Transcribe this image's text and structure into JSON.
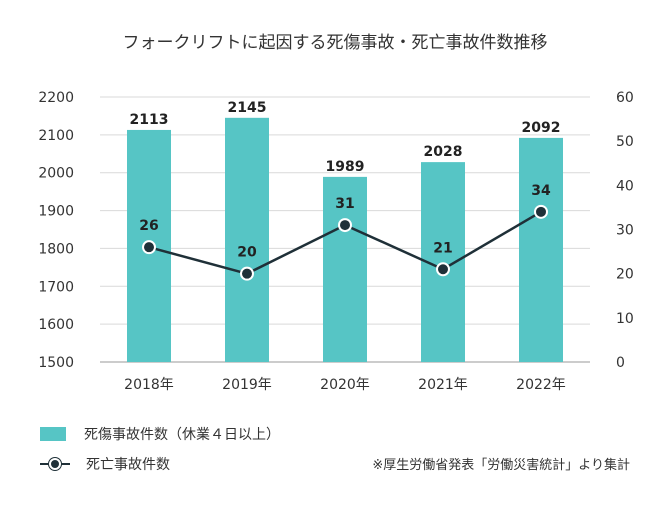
{
  "chart_data": {
    "type": "bar",
    "title": "フォークリフトに起因する死傷事故・死亡事故件数推移",
    "categories": [
      "2018年",
      "2019年",
      "2020年",
      "2021年",
      "2022年"
    ],
    "series": [
      {
        "name": "死傷事故件数（休業４日以上）",
        "type": "bar",
        "axis": "left",
        "values": [
          2113,
          2145,
          1989,
          2028,
          2092
        ],
        "color": "#56c5c5"
      },
      {
        "name": "死亡事故件数",
        "type": "line",
        "axis": "right",
        "values": [
          26,
          20,
          31,
          21,
          34
        ],
        "color": "#1f3038"
      }
    ],
    "y_left": {
      "min": 1500,
      "max": 2200,
      "ticks": [
        1500,
        1600,
        1700,
        1800,
        1900,
        2000,
        2100,
        2200
      ]
    },
    "y_right": {
      "min": 0,
      "max": 60,
      "ticks": [
        0,
        10,
        20,
        30,
        40,
        50,
        60
      ]
    },
    "grid": true,
    "legend_position": "bottom-left",
    "source_note": "※厚生労働省発表「労働災害統計」より集計"
  }
}
